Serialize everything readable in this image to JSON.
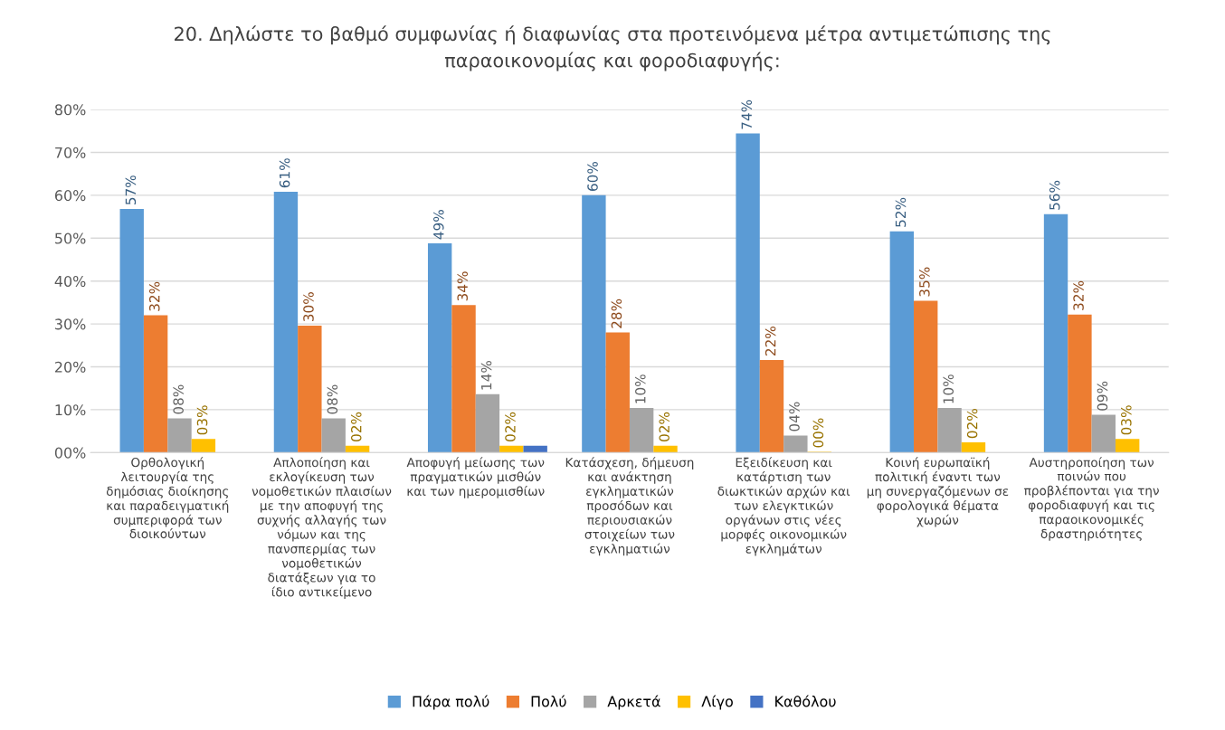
{
  "chart_data": {
    "type": "bar",
    "title": "20. Δηλώστε το βαθμό συμφωνίας ή διαφωνίας στα προτεινόμενα μέτρα αντιμετώπισης της παραοικονομίας και φοροδιαφυγής:",
    "categories": [
      "Ορθολογική λειτουργία της δημόσιας διοίκησης και παραδειγματική συμπεριφορά των διοικούντων",
      "Απλοποίηση και εκλογίκευση των νομοθετικών πλαισίων με την αποφυγή της συχνής αλλαγής των νόμων και της πανσπερμίας των νομοθετικών διατάξεων για το ίδιο αντικείμενο",
      "Αποφυγή μείωσης των πραγματικών μισθών και των ημερομισθίων",
      "Κατάσχεση, δήμευση και ανάκτηση εγκληματικών προσόδων και περιουσιακών στοιχείων των εγκληματιών",
      "Εξειδίκευση και κατάρτιση των διωκτικών αρχών και των ελεγκτικών οργάνων στις νέες μορφές οικονομικών εγκλημάτων",
      "Κοινή ευρωπαϊκή πολιτική έναντι των μη συνεργαζόμενων σε φορολογικά θέματα χωρών",
      "Αυστηροποίηση των ποινών που προβλέπονται για την φοροδιαφυγή και τις παραοικονομικές δραστηριότητες"
    ],
    "series": [
      {
        "name": "Πάρα πολύ",
        "color": "#5b9bd5",
        "values": [
          56.8,
          60.8,
          48.8,
          60.0,
          74.4,
          51.6,
          55.6
        ],
        "value_labels": [
          "57%",
          "61%",
          "49%",
          "60%",
          "74%",
          "52%",
          "56%"
        ]
      },
      {
        "name": "Πολύ",
        "color": "#ed7d31",
        "values": [
          32.0,
          29.6,
          34.4,
          28.0,
          21.6,
          35.4,
          32.2
        ],
        "value_labels": [
          "32%",
          "30%",
          "34%",
          "28%",
          "22%",
          "35%",
          "32%"
        ]
      },
      {
        "name": "Αρκετά",
        "color": "#a5a5a5",
        "values": [
          8.0,
          8.0,
          13.6,
          10.4,
          4.0,
          10.4,
          8.8
        ],
        "value_labels": [
          "08%",
          "08%",
          "14%",
          "10%",
          "04%",
          "10%",
          "09%"
        ]
      },
      {
        "name": "Λίγο",
        "color": "#ffc000",
        "values": [
          3.2,
          1.6,
          1.6,
          1.6,
          0.2,
          2.4,
          3.2
        ],
        "value_labels": [
          "03%",
          "02%",
          "02%",
          "02%",
          "00%",
          "02%",
          "03%"
        ]
      },
      {
        "name": "Καθόλου",
        "color": "#4472c4",
        "values": [
          null,
          null,
          1.6,
          null,
          null,
          null,
          null
        ],
        "value_labels": [
          null,
          null,
          null,
          null,
          null,
          null,
          null
        ]
      }
    ],
    "ylim": [
      0,
      80
    ],
    "yticks": [
      {
        "value": 0,
        "label": "00%"
      },
      {
        "value": 10,
        "label": "10%"
      },
      {
        "value": 20,
        "label": "20%"
      },
      {
        "value": 30,
        "label": "30%"
      },
      {
        "value": 40,
        "label": "40%"
      },
      {
        "value": 50,
        "label": "50%"
      },
      {
        "value": 60,
        "label": "60%"
      },
      {
        "value": 70,
        "label": "70%"
      },
      {
        "value": 80,
        "label": "80%"
      }
    ],
    "grid": "y",
    "legend": "bottom"
  }
}
